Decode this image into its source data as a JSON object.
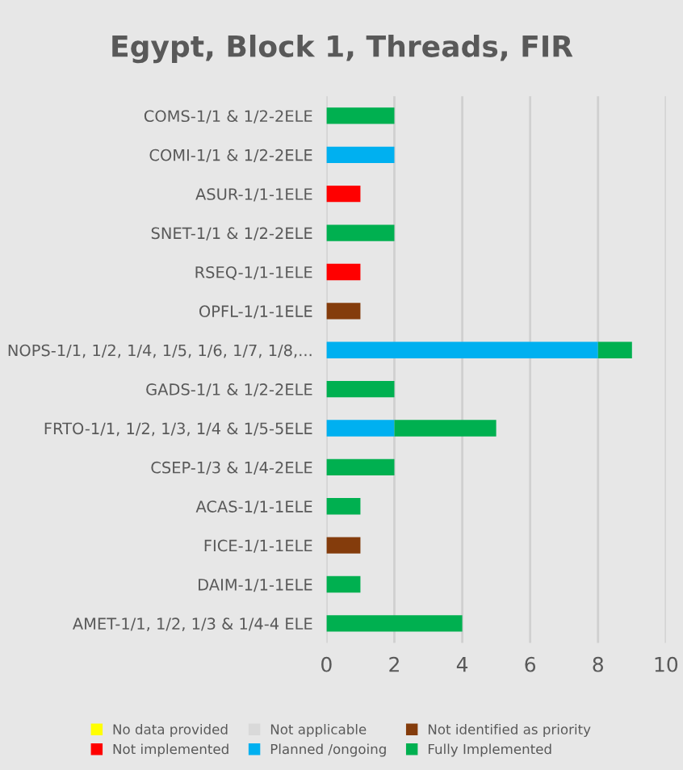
{
  "chart_data": {
    "type": "bar",
    "orientation": "horizontal",
    "stacked": true,
    "title": "Egypt, Block 1, Threads, FIR",
    "categories": [
      "COMS-1/1 & 1/2-2ELE",
      "COMI-1/1 & 1/2-2ELE",
      "ASUR-1/1-1ELE",
      "SNET-1/1 & 1/2-2ELE",
      "RSEQ-1/1-1ELE",
      "OPFL-1/1-1ELE",
      "NOPS-1/1, 1/2, 1/4, 1/5, 1/6, 1/7, 1/8,...",
      "GADS-1/1 & 1/2-2ELE",
      "FRTO-1/1, 1/2, 1/3, 1/4 & 1/5-5ELE",
      "CSEP-1/3 & 1/4-2ELE",
      "ACAS-1/1-1ELE",
      "FICE-1/1-1ELE",
      "DAIM-1/1-1ELE",
      "AMET-1/1, 1/2, 1/3 & 1/4-4 ELE"
    ],
    "series": [
      {
        "name": "No data provided",
        "color": "#ffff00",
        "values": [
          null,
          null,
          null,
          null,
          null,
          null,
          null,
          null,
          null,
          null,
          null,
          null,
          null,
          null
        ]
      },
      {
        "name": "Not applicable",
        "color": "#d9d9d9",
        "values": [
          null,
          null,
          null,
          null,
          null,
          null,
          null,
          null,
          null,
          null,
          null,
          null,
          null,
          null
        ]
      },
      {
        "name": "Not identified as priority",
        "color": "#843c0c",
        "values": [
          null,
          null,
          null,
          null,
          null,
          1,
          null,
          null,
          null,
          null,
          null,
          1,
          null,
          null
        ]
      },
      {
        "name": "Not implemented",
        "color": "#ff0000",
        "values": [
          null,
          null,
          1,
          null,
          1,
          null,
          null,
          null,
          null,
          null,
          null,
          null,
          null,
          null
        ]
      },
      {
        "name": "Planned /ongoing",
        "color": "#00b0f0",
        "values": [
          null,
          2,
          null,
          null,
          null,
          null,
          8,
          null,
          2,
          null,
          null,
          null,
          null,
          null
        ]
      },
      {
        "name": "Fully Implemented",
        "color": "#00b050",
        "values": [
          2,
          null,
          null,
          2,
          null,
          null,
          1,
          2,
          3,
          2,
          1,
          null,
          1,
          4
        ]
      }
    ],
    "xlim": [
      0,
      10
    ],
    "xticks": [
      0,
      2,
      4,
      6,
      8,
      10
    ],
    "grid": "x",
    "legend": "bottom"
  }
}
